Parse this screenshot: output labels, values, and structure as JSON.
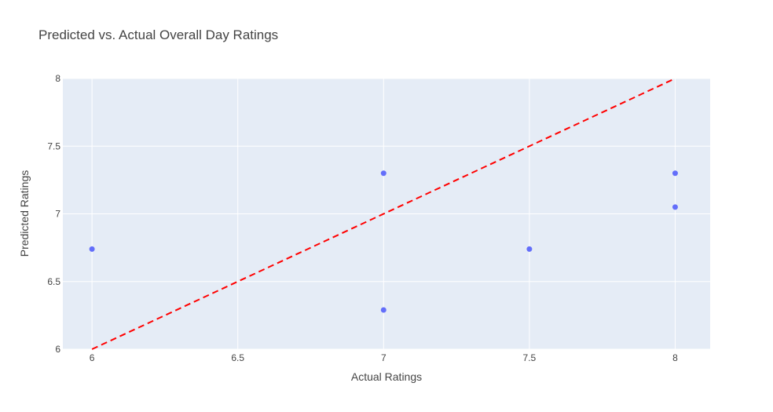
{
  "chart_data": {
    "type": "scatter",
    "title": "Predicted vs. Actual Overall Day Ratings",
    "xlabel": "Actual Ratings",
    "ylabel": "Predicted Ratings",
    "xlim": [
      5.9,
      8.12
    ],
    "ylim": [
      6,
      8
    ],
    "xticks": [
      6,
      6.5,
      7,
      7.5,
      8
    ],
    "xtick_labels": [
      "6",
      "6.5",
      "7",
      "7.5",
      "8"
    ],
    "yticks": [
      6,
      6.5,
      7,
      7.5,
      8
    ],
    "ytick_labels": [
      "6",
      "6.5",
      "7",
      "7.5",
      "8"
    ],
    "grid": true,
    "legend": "none",
    "series": [
      {
        "mode": "markers",
        "color": "#636efa",
        "points": [
          {
            "x": 6,
            "y": 6.74
          },
          {
            "x": 7,
            "y": 7.3
          },
          {
            "x": 7,
            "y": 6.29
          },
          {
            "x": 7.5,
            "y": 6.74
          },
          {
            "x": 8,
            "y": 7.3
          },
          {
            "x": 8,
            "y": 7.05
          }
        ]
      },
      {
        "mode": "line",
        "dash": "dash",
        "color": "#ff0000",
        "points": [
          {
            "x": 6,
            "y": 6
          },
          {
            "x": 8,
            "y": 8
          }
        ]
      }
    ],
    "colors": {
      "plot_background": "#e5ecf6",
      "grid": "#ffffff",
      "text": "#444444"
    }
  }
}
